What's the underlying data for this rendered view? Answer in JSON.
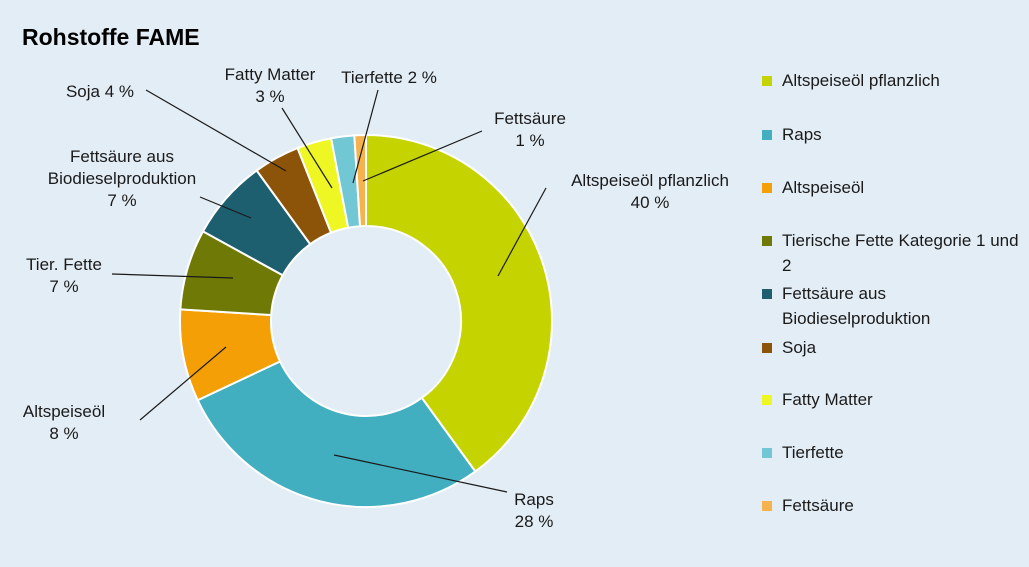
{
  "title": "Rohstoffe FAME",
  "chart_data": {
    "type": "pie",
    "variant": "donut",
    "title": "Rohstoffe FAME",
    "start": "12 o'clock, clockwise",
    "legend_position": "right",
    "slices": [
      {
        "legend": "Altspeiseöl pflanzlich",
        "label": [
          "Altspeiseöl pflanzlich",
          "40 %"
        ],
        "value": 40,
        "color": "#c5d400"
      },
      {
        "legend": "Raps",
        "label": [
          "Raps",
          "28 %"
        ],
        "value": 28,
        "color": "#41afc0"
      },
      {
        "legend": "Altspeiseöl",
        "label": [
          "Altspeiseöl",
          "8 %"
        ],
        "value": 8,
        "color": "#f59f06"
      },
      {
        "legend": "Tierische Fette Kategorie 1 und 2",
        "label": [
          "Tier. Fette",
          "7 %"
        ],
        "value": 7,
        "color": "#6f7a06"
      },
      {
        "legend": "Fettsäure aus Biodieselproduktion",
        "label": [
          "Fettsäure aus",
          "Biodieselproduktion",
          "7 %"
        ],
        "value": 7,
        "color": "#1d5e6f"
      },
      {
        "legend": "Soja",
        "label": [
          "Soja 4 %"
        ],
        "value": 4,
        "color": "#8c5408"
      },
      {
        "legend": "Fatty Matter",
        "label": [
          "Fatty Matter",
          "3 %"
        ],
        "value": 3,
        "color": "#eef724"
      },
      {
        "legend": "Tierfette",
        "label": [
          "Tierfette 2 %"
        ],
        "value": 2,
        "color": "#72c7d4"
      },
      {
        "legend": "Fettsäure",
        "label": [
          "Fettsäure",
          "1 %"
        ],
        "value": 1,
        "color": "#f6b24c"
      }
    ]
  }
}
